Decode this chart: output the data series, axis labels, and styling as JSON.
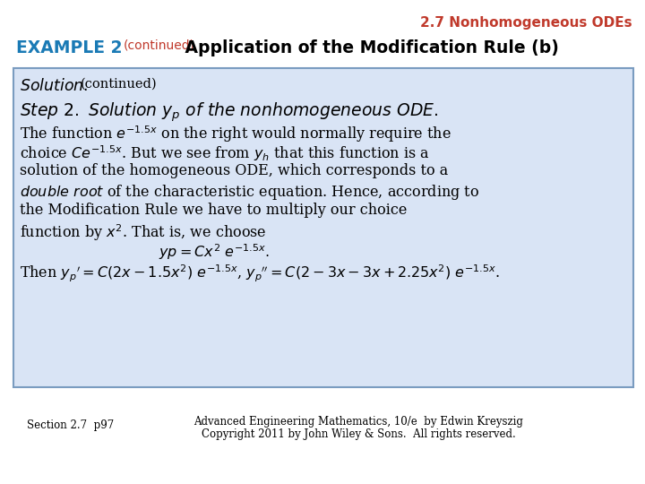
{
  "bg_color": "#ffffff",
  "header_color": "#c0392b",
  "header_text": "2.7 Nonhomogeneous ODEs",
  "example_label": "EXAMPLE 2",
  "example_label_color": "#1a7ab5",
  "example_continued": "(continued)",
  "example_continued_color": "#c0392b",
  "example_title": " Application of the Modification Rule (b)",
  "box_bg_color": "#d9e4f5",
  "box_border_color": "#7a9cc0",
  "footer_left": "Section 2.7  p97",
  "footer_right_line1": "Advanced Engineering Mathematics, 10/e  by Edwin Kreyszig",
  "footer_right_line2": "Copyright 2011 by John Wiley & Sons.  All rights reserved."
}
